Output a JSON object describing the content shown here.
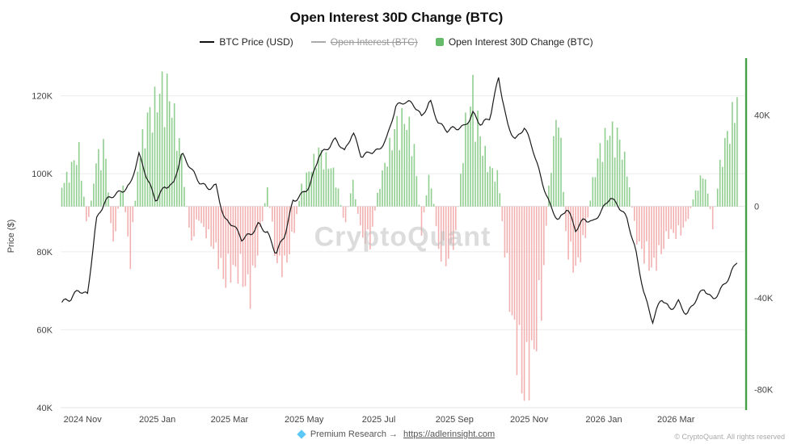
{
  "title": "Open Interest 30D Change (BTC)",
  "legend": {
    "items": [
      {
        "label": "BTC Price (USD)",
        "state": "enabled"
      },
      {
        "label": "Open Interest (BTC)",
        "state": "disabled"
      },
      {
        "label": "Open Interest 30D Change (BTC)",
        "state": "enabled"
      }
    ]
  },
  "colors": {
    "price_line": "#1a1a1a",
    "bar_positive": "#7cc67c",
    "bar_negative": "#f0a2a2",
    "right_axis": "#43a047",
    "legend_green": "#66bb6a",
    "watermark": "#bfbfbf"
  },
  "footer": {
    "gem_icon": "gem",
    "premium_text": "Premium Research →",
    "link": "https://adlerinsight.com",
    "copyright": "© CryptoQuant. All rights reserved"
  },
  "chart_data": {
    "type": "combo",
    "title": "Open Interest 30D Change (BTC)",
    "ylabel_left": "Price ($)",
    "watermark": "CryptoQuant",
    "grid": "horizontal",
    "legend_position": "top",
    "x_domain": [
      "2024-10-14",
      "2026-04-26"
    ],
    "price_axis": {
      "range": [
        40,
        128
      ],
      "ticks": [
        {
          "value": 40,
          "label": "40K"
        },
        {
          "value": 60,
          "label": "60K"
        },
        {
          "value": 80,
          "label": "80K"
        },
        {
          "value": 100,
          "label": "100K"
        },
        {
          "value": 120,
          "label": "120K"
        }
      ]
    },
    "oi_axis": {
      "range": [
        -88,
        62
      ],
      "ticks": [
        {
          "value": -80,
          "label": "-80K"
        },
        {
          "value": -40,
          "label": "-40K"
        },
        {
          "value": 0,
          "label": "0"
        },
        {
          "value": 40,
          "label": "40K"
        }
      ]
    },
    "x_ticks": [
      {
        "date": "2024-11-01",
        "label": "2024 Nov"
      },
      {
        "date": "2025-01-01",
        "label": "2025 Jan"
      },
      {
        "date": "2025-03-01",
        "label": "2025 Mar"
      },
      {
        "date": "2025-05-01",
        "label": "2025 May"
      },
      {
        "date": "2025-07-01",
        "label": "2025 Jul"
      },
      {
        "date": "2025-09-01",
        "label": "2025 Sep"
      },
      {
        "date": "2025-11-01",
        "label": "2025 Nov"
      },
      {
        "date": "2026-01-01",
        "label": "2026 Jan"
      },
      {
        "date": "2026-03-01",
        "label": "2026 Mar"
      }
    ],
    "x": [
      "2024-10-15",
      "2024-10-22",
      "2024-10-29",
      "2024-11-05",
      "2024-11-12",
      "2024-11-19",
      "2024-11-26",
      "2024-12-03",
      "2024-12-10",
      "2024-12-17",
      "2024-12-24",
      "2024-12-31",
      "2025-01-07",
      "2025-01-14",
      "2025-01-21",
      "2025-01-28",
      "2025-02-04",
      "2025-02-11",
      "2025-02-18",
      "2025-02-25",
      "2025-03-04",
      "2025-03-11",
      "2025-03-18",
      "2025-03-25",
      "2025-04-01",
      "2025-04-08",
      "2025-04-15",
      "2025-04-22",
      "2025-04-29",
      "2025-05-06",
      "2025-05-13",
      "2025-05-20",
      "2025-05-27",
      "2025-06-03",
      "2025-06-10",
      "2025-06-17",
      "2025-06-24",
      "2025-07-01",
      "2025-07-08",
      "2025-07-15",
      "2025-07-22",
      "2025-07-29",
      "2025-08-05",
      "2025-08-12",
      "2025-08-19",
      "2025-08-26",
      "2025-09-02",
      "2025-09-09",
      "2025-09-16",
      "2025-09-23",
      "2025-09-30",
      "2025-10-07",
      "2025-10-14",
      "2025-10-21",
      "2025-10-28",
      "2025-11-04",
      "2025-11-11",
      "2025-11-18",
      "2025-11-25",
      "2025-12-02",
      "2025-12-09",
      "2025-12-16",
      "2025-12-23",
      "2025-12-30",
      "2026-01-06",
      "2026-01-13",
      "2026-01-20",
      "2026-01-27",
      "2026-02-03",
      "2026-02-10",
      "2026-02-17",
      "2026-02-24",
      "2026-03-03",
      "2026-03-10",
      "2026-03-17",
      "2026-03-24",
      "2026-03-31",
      "2026-04-07",
      "2026-04-14",
      "2026-04-21"
    ],
    "series": [
      {
        "id": "btc_price",
        "name": "BTC Price (USD)",
        "type": "line",
        "axis": "left",
        "unit": "K USD",
        "values": [
          67.0,
          67.4,
          70.2,
          69.4,
          88.0,
          92.3,
          94.4,
          96.0,
          97.3,
          104.5,
          98.4,
          93.6,
          96.9,
          96.6,
          105.0,
          102.1,
          98.3,
          95.8,
          96.6,
          88.6,
          87.3,
          82.9,
          84.0,
          87.5,
          85.2,
          79.2,
          83.7,
          93.4,
          95.0,
          96.8,
          104.2,
          106.8,
          109.4,
          105.4,
          110.2,
          104.6,
          106.1,
          105.7,
          108.9,
          117.5,
          119.0,
          117.9,
          114.1,
          118.8,
          113.4,
          111.1,
          111.2,
          112.1,
          116.0,
          112.5,
          114.0,
          124.8,
          113.2,
          108.6,
          111.5,
          106.4,
          99.0,
          92.0,
          87.3,
          91.2,
          86.1,
          88.6,
          87.0,
          90.2,
          94.5,
          92.0,
          88.0,
          80.0,
          69.5,
          62.4,
          67.8,
          64.8,
          67.5,
          64.1,
          67.3,
          70.2,
          68.0,
          70.8,
          73.5,
          77.8
        ]
      },
      {
        "id": "oi_change",
        "name": "Open Interest 30D Change (BTC)",
        "type": "bar",
        "axis": "right",
        "unit": "K BTC-contracts",
        "values": [
          8,
          15,
          22,
          -10,
          18,
          25,
          -18,
          12,
          -22,
          20,
          35,
          42,
          50,
          38,
          20,
          -15,
          -5,
          -12,
          -18,
          -30,
          -25,
          -28,
          -35,
          -15,
          8,
          -22,
          -25,
          -12,
          8,
          15,
          22,
          18,
          12,
          -8,
          10,
          -12,
          -15,
          8,
          20,
          32,
          35,
          28,
          -10,
          15,
          -18,
          -22,
          -12,
          30,
          46,
          25,
          15,
          12,
          -30,
          -55,
          -75,
          -60,
          -40,
          15,
          40,
          -18,
          -25,
          -15,
          10,
          25,
          30,
          28,
          15,
          -12,
          -20,
          -25,
          -18,
          -10,
          -12,
          -6,
          6,
          14,
          -8,
          20,
          32,
          45
        ]
      },
      {
        "id": "open_interest",
        "name": "Open Interest (BTC)",
        "type": "line",
        "axis": "right",
        "disabled": true,
        "values": []
      }
    ]
  }
}
